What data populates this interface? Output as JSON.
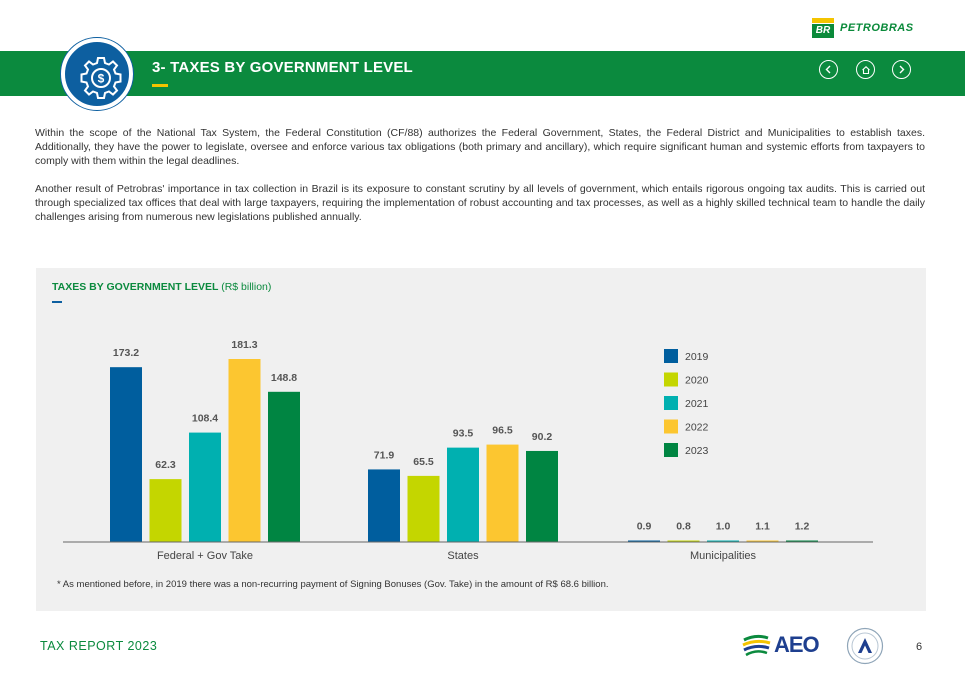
{
  "brand": {
    "mark": "BR",
    "name": "PETROBRAS"
  },
  "header": {
    "title": "3- TAXES BY GOVERNMENT LEVEL",
    "icons": {
      "badge": "gear-dollar-icon",
      "prev": "chevron-left-icon",
      "home": "home-icon",
      "next": "chevron-right-icon"
    }
  },
  "body": {
    "paragraphs": [
      "Within the scope of the National Tax System, the Federal Constitution (CF/88) authorizes the Federal Government, States, the Federal District and Municipalities to establish taxes. Additionally, they have the power to legislate, oversee and enforce various tax obligations (both primary and ancillary), which require significant human and systemic efforts from taxpayers to comply with them within the legal deadlines.",
      "Another result of Petrobras' importance in tax collection in Brazil is its exposure to constant scrutiny by all levels of government, which entails rigorous ongoing tax audits. This is carried out through specialized tax offices that deal with large taxpayers, requiring the implementation of robust accounting and tax processes, as well as a highly skilled technical team to handle the daily challenges arising from numerous new legislations published annually."
    ]
  },
  "chart_data": {
    "type": "bar",
    "title": "TAXES BY GOVERNMENT LEVEL",
    "unit": "(R$ billion)",
    "categories": [
      "Federal + Gov Take",
      "States",
      "Municipalities"
    ],
    "series": [
      {
        "name": "2019",
        "color": "#005e9e",
        "values": [
          173.2,
          71.9,
          0.9
        ],
        "labels": [
          "173.2",
          "71.9",
          "0.9"
        ]
      },
      {
        "name": "2020",
        "color": "#c4d600",
        "values": [
          62.3,
          65.5,
          0.8
        ],
        "labels": [
          "62.3",
          "65.5",
          "0.8"
        ]
      },
      {
        "name": "2021",
        "color": "#00b0b0",
        "values": [
          108.4,
          93.5,
          1.0
        ],
        "labels": [
          "108.4",
          "93.5",
          "1.0"
        ]
      },
      {
        "name": "2022",
        "color": "#fcc630",
        "values": [
          181.3,
          96.5,
          1.1
        ],
        "labels": [
          "181.3",
          "96.5",
          "1.1"
        ]
      },
      {
        "name": "2023",
        "color": "#008542",
        "values": [
          148.8,
          90.2,
          1.2
        ],
        "labels": [
          "148.8",
          "90.2",
          "1.2"
        ]
      }
    ],
    "ylim": [
      0,
      181.3
    ],
    "grid": false,
    "legend": "right",
    "footnote": "* As mentioned before, in 2019 there was a non-recurring payment of Signing Bonuses (Gov. Take) in the amount of R$ 68.6 billion."
  },
  "footer": {
    "label": "TAX REPORT 2023",
    "aeo_logo": "AEO",
    "seal_icon": "certification-seal-icon",
    "page": "6"
  }
}
